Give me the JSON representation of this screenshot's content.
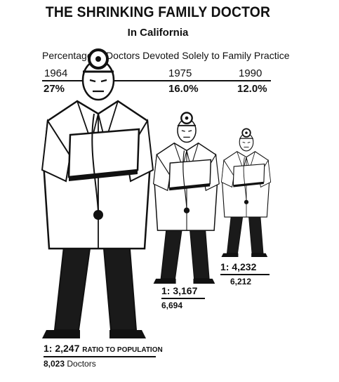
{
  "title": "THE SHRINKING FAMILY DOCTOR",
  "subtitle": "In California",
  "caption": "Percentage of Doctors Devoted Solely to Family Practice",
  "colors": {
    "ink": "#111111",
    "coat": "#ffffff",
    "trousers": "#1a1a1a"
  },
  "chart_data": {
    "type": "pictograph",
    "title": "THE SHRINKING FAMILY DOCTOR",
    "subtitle": "In California",
    "caption": "Percentage of Doctors Devoted Solely to Family Practice",
    "series": [
      {
        "year": "1964",
        "pct_label": "27%",
        "value": 27.0,
        "ratio_label": "1: 2,247",
        "ratio_suffix": "RATIO TO POPULATION",
        "count_label": "8,023",
        "count_suffix": "Doctors"
      },
      {
        "year": "1975",
        "pct_label": "16.0%",
        "value": 16.0,
        "ratio_label": "1: 3,167",
        "ratio_suffix": "",
        "count_label": "6,694",
        "count_suffix": ""
      },
      {
        "year": "1990",
        "pct_label": "12.0%",
        "value": 12.0,
        "ratio_label": "1: 4,232",
        "ratio_suffix": "",
        "count_label": "6,212",
        "count_suffix": ""
      }
    ]
  }
}
